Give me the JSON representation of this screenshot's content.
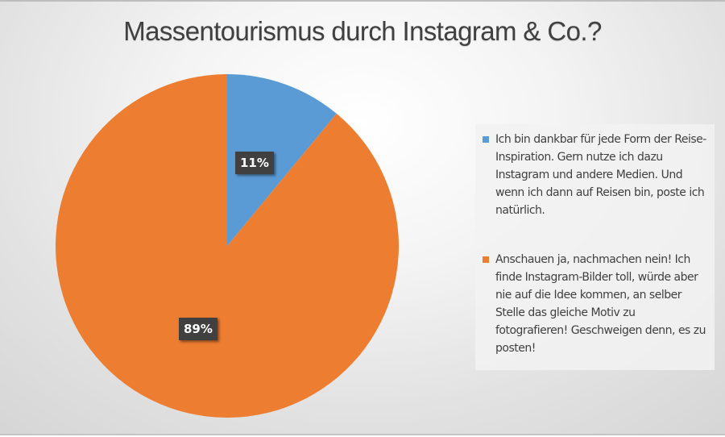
{
  "title": "Massentourismus durch Instagram & Co.?",
  "colors": {
    "series_blue": "#5b9bd5",
    "series_orange": "#ed7d31",
    "label_bg": "#404040",
    "text": "#404040"
  },
  "data_labels": [
    "11%",
    "89%"
  ],
  "legend": {
    "items": [
      {
        "label": "Ich bin dankbar für jede Form der Reise-Inspiration. Gern nutze ich dazu Instagram und andere Medien. Und wenn ich dann auf Reisen bin, poste ich natürlich.",
        "color": "#5b9bd5"
      },
      {
        "label": "Anschauen ja, nachmachen nein! Ich finde Instagram-Bilder toll, würde aber nie auf die Idee kommen, an selber Stelle das gleiche Motiv zu fotografieren! Geschweigen denn, es zu posten!",
        "color": "#ed7d31"
      }
    ]
  },
  "chart_data": {
    "type": "pie",
    "title": "Massentourismus durch Instagram & Co.?",
    "categories": [
      "Ich bin dankbar für jede Form der Reise-Inspiration. Gern nutze ich dazu Instagram und andere Medien. Und wenn ich dann auf Reisen bin, poste ich natürlich.",
      "Anschauen ja, nachmachen nein! Ich finde Instagram-Bilder toll, würde aber nie auf die Idee kommen, an selber Stelle das gleiche Motiv zu fotografieren! Geschweigen denn, es zu posten!"
    ],
    "values": [
      11,
      89
    ],
    "unit": "%",
    "colors": [
      "#5b9bd5",
      "#ed7d31"
    ],
    "data_labels": [
      "11%",
      "89%"
    ],
    "start_angle_deg": 0,
    "direction": "clockwise",
    "legend_position": "right",
    "grid": false
  }
}
